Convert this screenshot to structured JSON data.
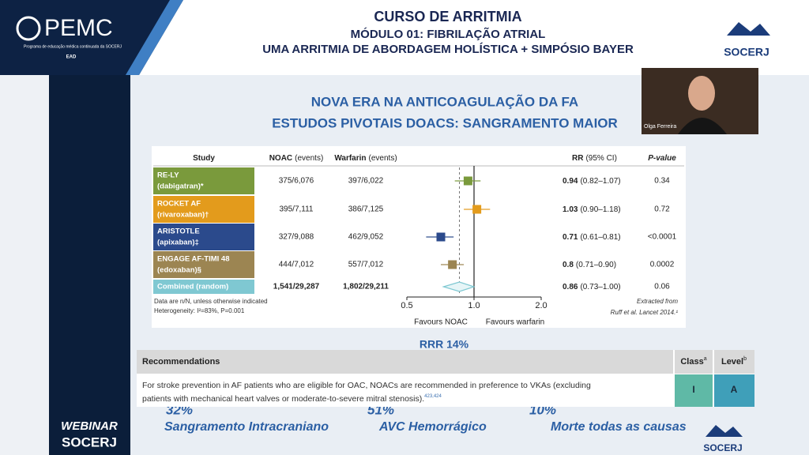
{
  "header": {
    "course": "CURSO DE ARRITMIA",
    "module": "MÓDULO 01: FIBRILAÇÃO ATRIAL",
    "subtitle": "UMA ARRITMIA DE ABORDAGEM HOLÍSTICA + SIMPÓSIO BAYER",
    "logo_left": "PEMC",
    "logo_left_caption": "Programa de educação médica continuada da SOCERJ",
    "ead": "EAD",
    "logo_right": "SOCERJ"
  },
  "webcam": {
    "name": "Olga Ferreira"
  },
  "sidebar": {
    "line1": "WEBINAR",
    "line2": "SOCERJ"
  },
  "slide": {
    "title_line1": "NOVA ERA NA ANTICOAGULAÇÃO DA FA",
    "title_line2": "ESTUDOS PIVOTAIS DOACS: SANGRAMENTO MAIOR",
    "rrr": "RRR 14%",
    "logo": "SOCERJ"
  },
  "chart_data": {
    "type": "forest",
    "columns": [
      {
        "title": "Study"
      },
      {
        "title": "NOAC",
        "note": "(events)"
      },
      {
        "title": "Warfarin",
        "note": "(events)"
      },
      {
        "title": "RR",
        "note": "(95% CI)"
      },
      {
        "title": "P-value"
      }
    ],
    "studies": [
      {
        "name": "RE-LY",
        "drug": "(dabigatran)*"
      },
      {
        "name": "ROCKET AF",
        "drug": "(rivaroxaban)†"
      },
      {
        "name": "ARISTOTLE",
        "drug": "(apixaban)‡"
      },
      {
        "name": "ENGAGE AF-TIMI 48",
        "drug": "(edoxaban)§"
      },
      {
        "name": "Combined (random)"
      }
    ],
    "noac": [
      "375/6,076",
      "395/7,111",
      "327/9,088",
      "444/7,012",
      "1,541/29,287"
    ],
    "warfarin": [
      "397/6,022",
      "386/7,125",
      "462/9,052",
      "557/7,012",
      "1,802/29,211"
    ],
    "values": [
      0.94,
      1.03,
      0.71,
      0.8,
      0.86
    ],
    "ci_low": [
      0.82,
      0.9,
      0.61,
      0.71,
      0.73
    ],
    "ci_high": [
      1.07,
      1.18,
      0.81,
      0.9,
      1.0
    ],
    "ci_labels": [
      "(0.82–1.07)",
      "(0.90–1.18)",
      "(0.61–0.81)",
      "(0.71–0.90)",
      "(0.73–1.00)"
    ],
    "p_values": [
      "0.34",
      "0.72",
      "<0.0001",
      "0.0002",
      "0.06"
    ],
    "colors": [
      "#7a9a3c",
      "#e39b1c",
      "#2b4a8c",
      "#9c8552",
      "#7fc8d2"
    ],
    "xlim": [
      0.5,
      2
    ],
    "xticks": [
      0.5,
      {
        "value": 1,
        "label": "1.0"
      },
      {
        "value": 2,
        "label": "2.0"
      }
    ],
    "log_scale": true,
    "reference_line": 1,
    "footnote1": "Data are n/N, unless otherwise indicated",
    "footnote2": "Heterogeneity: I²=83%, P=0.001",
    "favours_left": "Favours NOAC",
    "favours_right": "Favours warfarin",
    "source1": "Extracted from",
    "source2": "Ruff et al. Lancet 2014.¹"
  },
  "recommendations": {
    "header": "Recommendations",
    "class_header": "Class",
    "class_sup": "a",
    "level_header": "Level",
    "level_sup": "b",
    "text_line1": "For stroke prevention in AF patients who are eligible for OAC, NOACs are recommended in preference to VKAs (excluding",
    "text_line2": "patients with mechanical heart valves or moderate-to-severe mitral stenosis).",
    "refs": "423,424",
    "class": "I",
    "level": "A"
  },
  "stats": [
    {
      "value": "32%",
      "label": "Sangramento Intracraniano"
    },
    {
      "value": "51%",
      "label": "AVC Hemorrágico"
    },
    {
      "value": "10%",
      "label": "Morte todas as causas"
    }
  ]
}
